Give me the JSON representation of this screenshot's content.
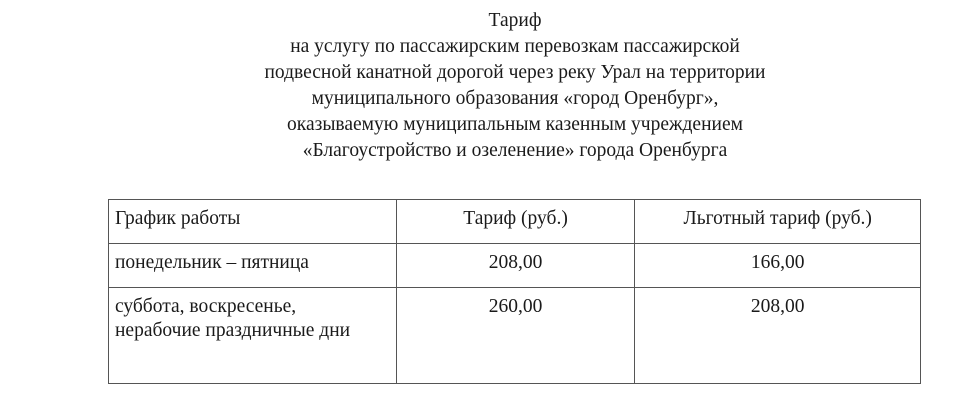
{
  "title_lines": [
    "Тариф",
    "на услугу по пассажирским перевозкам пассажирской",
    "подвесной канатной дорогой через реку Урал на территории",
    "муниципального образования «город Оренбург»,",
    "оказываемую муниципальным казенным учреждением",
    "«Благоустройство и озеленение» города Оренбурга"
  ],
  "table": {
    "headers": [
      "График работы",
      "Тариф (руб.)",
      "Льготный тариф (руб.)"
    ],
    "rows": [
      [
        "понедельник – пятница",
        "208,00",
        "166,00"
      ],
      [
        "суббота, воскресенье, нерабочие праздничные дни",
        "260,00",
        "208,00"
      ]
    ]
  }
}
